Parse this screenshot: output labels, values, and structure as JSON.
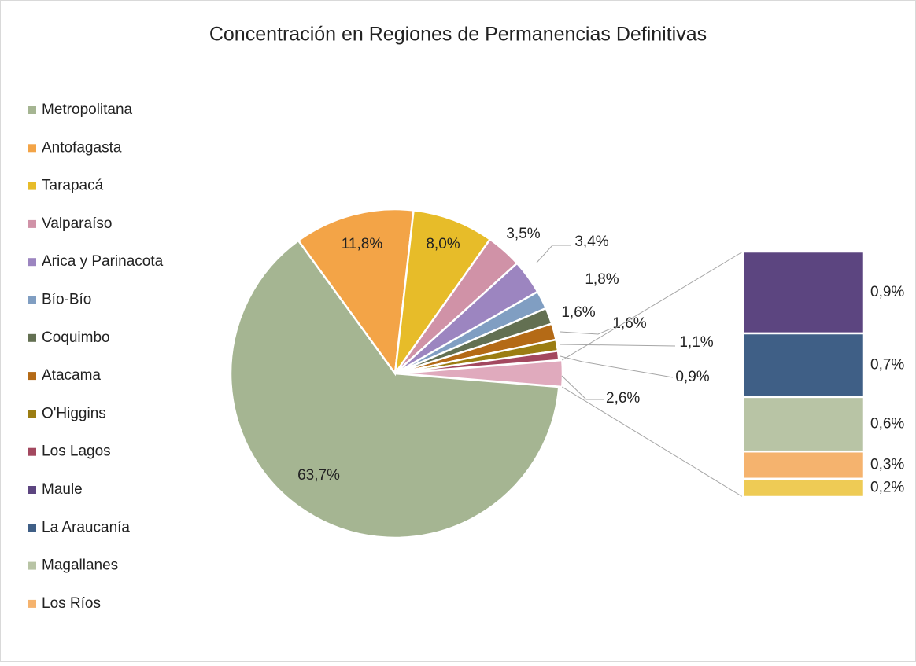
{
  "chart_data": {
    "type": "bar_of_pie",
    "title": "Concentración en Regiones de Permanencias Definitivas",
    "pie": {
      "categories": [
        "Metropolitana",
        "Antofagasta",
        "Tarapacá",
        "Valparaíso",
        "Arica y Parinacota",
        "Bío-Bío",
        "Coquimbo",
        "Atacama",
        "O'Higgins",
        "Los Lagos"
      ],
      "values": [
        63.7,
        11.8,
        8.0,
        3.5,
        3.4,
        1.8,
        1.6,
        1.6,
        1.1,
        0.9
      ],
      "value_labels": [
        "63,7%",
        "11,8%",
        "8,0%",
        "3,5%",
        "3,4%",
        "1,8%",
        "1,6%",
        "1,6%",
        "1,1%",
        "0,9%"
      ],
      "colors": [
        "#a5b592",
        "#f3a447",
        "#e7bc29",
        "#d092a7",
        "#9c85c0",
        "#809ec2",
        "#637052",
        "#b46a16",
        "#9b7d12",
        "#a3485f"
      ],
      "other": {
        "value": 2.6,
        "label": "2,6%",
        "color": "#e0aabd"
      }
    },
    "bar": {
      "categories": [
        "Maule",
        "La Araucanía",
        "Magallanes",
        "Los Ríos",
        null
      ],
      "values": [
        0.9,
        0.7,
        0.6,
        0.3,
        0.2
      ],
      "value_labels": [
        "0,9%",
        "0,7%",
        "0,6%",
        "0,3%",
        "0,2%"
      ],
      "colors": [
        "#5c4580",
        "#3f5f86",
        "#b8c4a5",
        "#f5b36e",
        "#eecb55"
      ]
    }
  }
}
